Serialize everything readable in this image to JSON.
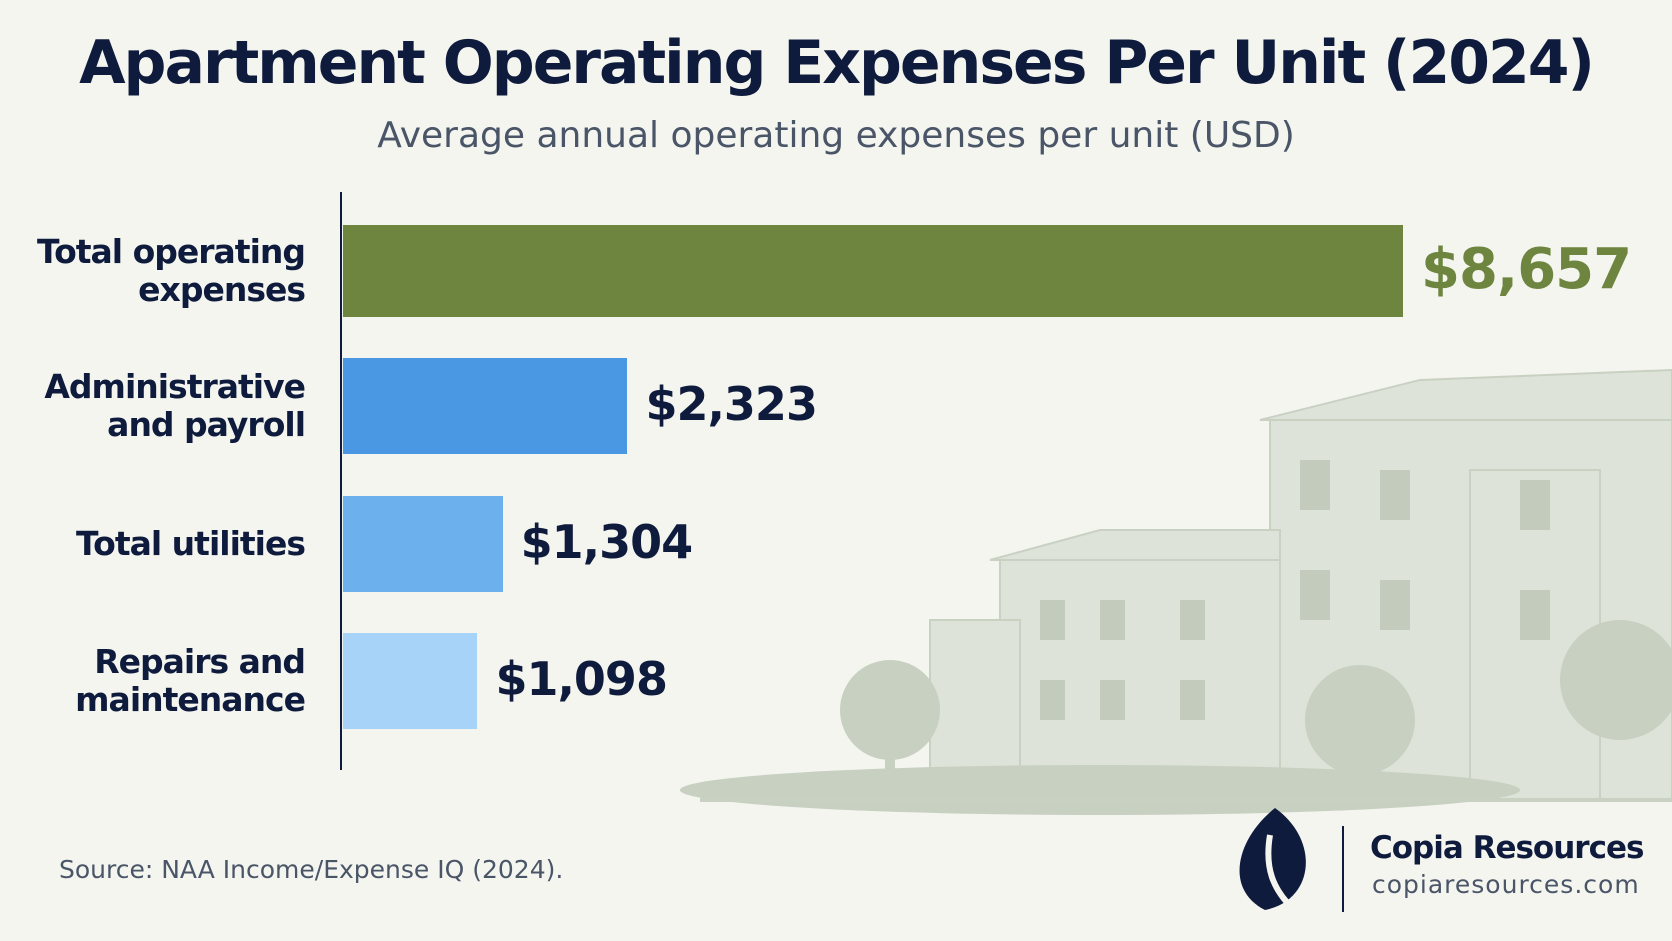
{
  "chart_data": {
    "type": "bar",
    "orientation": "horizontal",
    "title": "Apartment Operating Expenses Per Unit (2024)",
    "subtitle": "Average annual operating expenses per unit (USD)",
    "categories": [
      "Total operating expenses",
      "Administrative and payroll",
      "Total utilities",
      "Repairs and maintenance"
    ],
    "values": [
      8657,
      2323,
      1304,
      1098
    ],
    "value_labels": [
      "$8,657",
      "$2,323",
      "$1,304",
      "$1,098"
    ],
    "colors": [
      "#6e8540",
      "#4a97e3",
      "#6cb1ee",
      "#a7d3f8"
    ],
    "value_label_colors": [
      "#6e8540",
      "#0f1b3d",
      "#0f1b3d",
      "#0f1b3d"
    ],
    "source": "Source: NAA Income/Expense IQ (2024).",
    "brand": {
      "name": "Copia Resources",
      "url": "copiaresources.com"
    }
  }
}
